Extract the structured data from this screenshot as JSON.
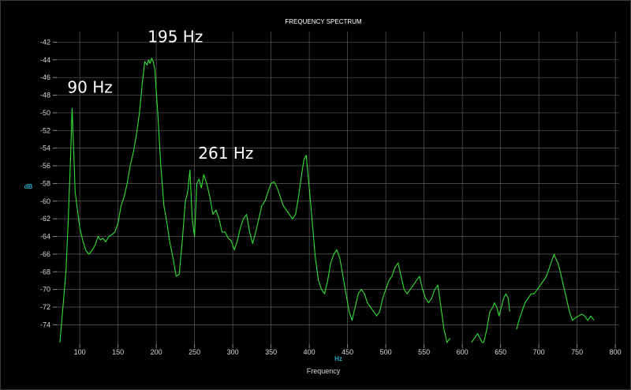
{
  "chart_data": {
    "type": "line",
    "title": "FREQUENCY SPECTRUM",
    "xlabel": "Frequency",
    "x_unit": "Hz",
    "ylabel": "dB",
    "xlim": [
      70,
      805
    ],
    "ylim": [
      -76.2,
      -40.8
    ],
    "xticks": [
      100,
      150,
      200,
      250,
      300,
      350,
      400,
      450,
      500,
      550,
      600,
      650,
      700,
      750,
      800
    ],
    "yticks": [
      -42,
      -44,
      -46,
      -48,
      -50,
      -52,
      -54,
      -56,
      -58,
      -60,
      -62,
      -64,
      -66,
      -68,
      -70,
      -72,
      -74
    ],
    "grid": true,
    "line_color": "#33e033",
    "series": [
      {
        "x": [
          74,
          78,
          82,
          85,
          88,
          90,
          92,
          94,
          97,
          100,
          104,
          108,
          112,
          116,
          120,
          124,
          127,
          130,
          134,
          138,
          142,
          146,
          150,
          154,
          158,
          162,
          166,
          170,
          174,
          178,
          182,
          185,
          188,
          190,
          192,
          194,
          196,
          198,
          202,
          206,
          210,
          214,
          218,
          222,
          226,
          230,
          234,
          238,
          241,
          244,
          247,
          250,
          253,
          256,
          259,
          262,
          266,
          270,
          274,
          278,
          282,
          286,
          290,
          294,
          298,
          302,
          306,
          310,
          314,
          318,
          322,
          326,
          330,
          334,
          338,
          342,
          346,
          350,
          354,
          358,
          362,
          366,
          370,
          374,
          378,
          382,
          386,
          390,
          393,
          396,
          400,
          404,
          408,
          412,
          416,
          420,
          424,
          428,
          432,
          436,
          440,
          444,
          448,
          452,
          456,
          460,
          464,
          468,
          472,
          476,
          480,
          484,
          488,
          492,
          496,
          500,
          504,
          508,
          512,
          516,
          520,
          524,
          528,
          532,
          536,
          540,
          544,
          548,
          552,
          556,
          560,
          564,
          568,
          572,
          576,
          580,
          584
        ],
        "y": [
          -76,
          -72,
          -68,
          -62,
          -55,
          -49.5,
          -54,
          -59,
          -61,
          -63,
          -64.5,
          -65.6,
          -66,
          -65.6,
          -65,
          -64,
          -64.4,
          -64.2,
          -64.6,
          -64,
          -63.8,
          -63.5,
          -62.5,
          -60.5,
          -59.5,
          -58,
          -56,
          -54.5,
          -52.5,
          -50,
          -46.5,
          -44.2,
          -44.6,
          -44,
          -44.4,
          -43.8,
          -44.2,
          -45,
          -50,
          -56,
          -60.5,
          -62.5,
          -64.8,
          -66.5,
          -68.5,
          -68.3,
          -64.5,
          -60,
          -59,
          -56.5,
          -62,
          -64,
          -58,
          -57.5,
          -58.5,
          -57,
          -58,
          -59.5,
          -61.5,
          -61,
          -62,
          -63.5,
          -63.5,
          -64.2,
          -64.5,
          -65.5,
          -64.5,
          -63,
          -62,
          -61.5,
          -63.5,
          -64.8,
          -63.5,
          -62,
          -60.5,
          -60,
          -59,
          -58,
          -57.8,
          -58.5,
          -59.5,
          -60.5,
          -61,
          -61.5,
          -62,
          -61.5,
          -59.5,
          -57,
          -55.3,
          -54.8,
          -58.5,
          -62.5,
          -66.5,
          -69,
          -70,
          -70.5,
          -69,
          -67,
          -66,
          -65.5,
          -66.5,
          -68.5,
          -70.5,
          -72.5,
          -73.5,
          -72,
          -70.5,
          -70,
          -70.5,
          -71.5,
          -72,
          -72.5,
          -73,
          -72.5,
          -71,
          -70,
          -69,
          -68.5,
          -67.5,
          -67,
          -68.5,
          -70,
          -70.5,
          -70,
          -69.5,
          -69,
          -68.5,
          -70,
          -71,
          -71.5,
          -71,
          -70,
          -69.5,
          -72,
          -74.5,
          -76,
          -75.5
        ]
      },
      {
        "x": [
          612,
          620,
          626,
          628,
          632,
          636,
          640,
          642,
          645,
          648,
          651,
          654,
          657,
          660,
          662
        ],
        "y": [
          -76,
          -75,
          -76,
          -76,
          -74.5,
          -72.5,
          -72,
          -71.5,
          -72,
          -73,
          -72,
          -71,
          -70.5,
          -71,
          -72.5
        ]
      },
      {
        "x": [
          671,
          674,
          678,
          682,
          686,
          690,
          694,
          698,
          702,
          706,
          710,
          714,
          718,
          720,
          722,
          725,
          728,
          732,
          736,
          740,
          744,
          748,
          752,
          756,
          760,
          764,
          768,
          772
        ],
        "y": [
          -74.5,
          -73.5,
          -72.5,
          -71.5,
          -71,
          -70.5,
          -70.5,
          -70,
          -69.5,
          -69,
          -68.5,
          -67.5,
          -66.5,
          -66,
          -66.5,
          -67,
          -68,
          -69.5,
          -71,
          -72.5,
          -73.5,
          -73.2,
          -73,
          -72.8,
          -73,
          -73.5,
          -73,
          -73.5
        ]
      }
    ],
    "annotations": [
      {
        "text": "90 Hz",
        "x": 90,
        "y": -49.5
      },
      {
        "text": "195 Hz",
        "x": 195,
        "y": -43.8
      },
      {
        "text": "261 Hz",
        "x": 261,
        "y": -57
      }
    ]
  }
}
